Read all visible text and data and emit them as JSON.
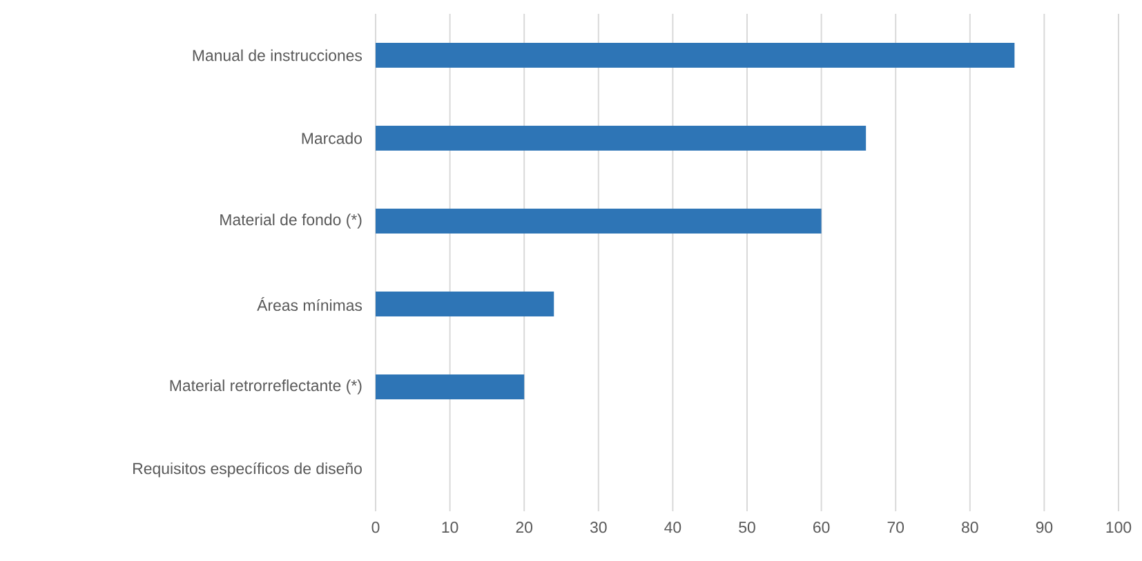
{
  "chart_data": {
    "type": "bar",
    "orientation": "horizontal",
    "categories": [
      "Manual de instrucciones",
      "Marcado",
      "Material de fondo (*)",
      "Áreas mínimas",
      "Material retrorreflectante (*)",
      "Requisitos específicos de diseño"
    ],
    "values": [
      86,
      66,
      60,
      24,
      20,
      0
    ],
    "color": "#2e75b6",
    "xlim": [
      0,
      100
    ],
    "xticks": [
      0,
      10,
      20,
      30,
      40,
      50,
      60,
      70,
      80,
      90,
      100
    ],
    "grid": "x"
  }
}
